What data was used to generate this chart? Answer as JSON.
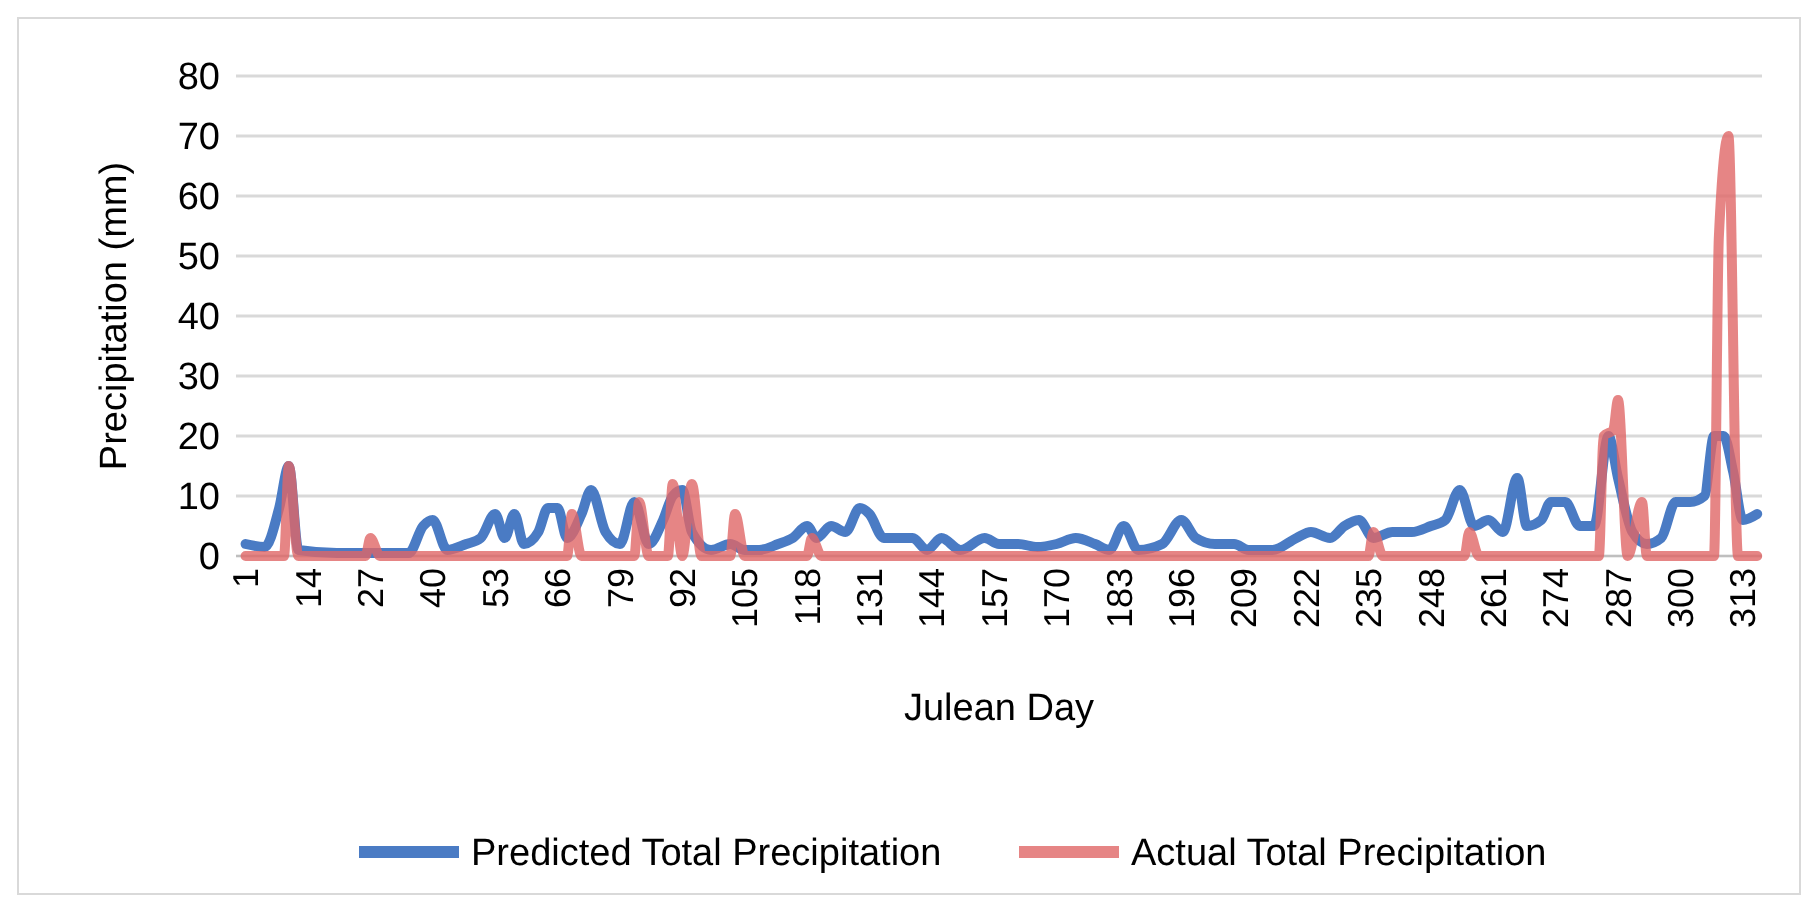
{
  "chart_data": {
    "type": "line",
    "xlabel": "Julean Day",
    "ylabel": "Precipitation (mm)",
    "xlim": [
      -1,
      317
    ],
    "xticks": [
      1,
      14,
      27,
      40,
      53,
      66,
      79,
      92,
      105,
      118,
      131,
      144,
      157,
      170,
      183,
      196,
      209,
      222,
      235,
      248,
      261,
      274,
      287,
      300,
      313
    ],
    "ylim": [
      0,
      80
    ],
    "yticks": [
      0,
      10,
      20,
      30,
      40,
      50,
      60,
      70,
      80
    ],
    "grid": "y",
    "legend": "bottom",
    "marker": "none",
    "line_style": "solid",
    "series": [
      {
        "name": "Predicted Total Precipitation",
        "color": "#4a7bc4",
        "x": [
          1,
          5,
          8,
          10,
          12,
          20,
          30,
          35,
          38,
          40,
          43,
          47,
          50,
          53,
          55,
          57,
          59,
          62,
          64,
          66,
          68,
          71,
          73,
          76,
          79,
          82,
          85,
          88,
          90,
          92,
          94,
          98,
          102,
          105,
          108,
          112,
          115,
          118,
          120,
          123,
          126,
          129,
          131,
          134,
          137,
          140,
          143,
          146,
          150,
          155,
          158,
          162,
          166,
          170,
          174,
          178,
          181,
          184,
          187,
          192,
          196,
          199,
          203,
          207,
          210,
          215,
          220,
          223,
          227,
          230,
          233,
          236,
          240,
          244,
          248,
          251,
          254,
          257,
          260,
          263,
          266,
          268,
          271,
          273,
          276,
          279,
          282,
          285,
          287,
          290,
          293,
          296,
          299,
          302,
          305,
          307,
          309,
          311,
          313,
          316
        ],
        "values": [
          2,
          1.5,
          8,
          15,
          1,
          0.5,
          0.5,
          0.5,
          5,
          6,
          1,
          2,
          3,
          7,
          3,
          7,
          2,
          4,
          8,
          8,
          3,
          7,
          11,
          4,
          2,
          9,
          2,
          6,
          10,
          11,
          4,
          1,
          2,
          1,
          1,
          2,
          3,
          5,
          3,
          5,
          4,
          8,
          7,
          3,
          3,
          3,
          1,
          3,
          1,
          3,
          2,
          2,
          1.5,
          2,
          3,
          2,
          1,
          5,
          1,
          2,
          6,
          3,
          2,
          2,
          1,
          1,
          3,
          4,
          3,
          5,
          6,
          3,
          4,
          4,
          5,
          6,
          11,
          5,
          6,
          4,
          13,
          5,
          6,
          9,
          9,
          5,
          5,
          20,
          13,
          4,
          2,
          3,
          9,
          9,
          10,
          20,
          20,
          14,
          6,
          7
        ]
      },
      {
        "name": "Actual Total Precipitation",
        "color": "#e06666",
        "x": [
          1,
          9,
          10,
          12,
          26,
          27,
          29,
          68,
          69,
          71,
          82,
          83,
          85,
          89,
          90,
          92,
          94,
          96,
          102,
          103,
          105,
          118,
          119,
          121,
          235,
          236,
          238,
          255,
          256,
          258,
          283,
          284,
          286,
          287,
          289,
          292,
          293,
          307,
          308,
          310,
          312,
          316
        ],
        "values": [
          0,
          0,
          15,
          0,
          0,
          3,
          0,
          0,
          7,
          0,
          0,
          9,
          0,
          0,
          12,
          0,
          12,
          0,
          0,
          7,
          0,
          0,
          3,
          0,
          0,
          4,
          0,
          0,
          4,
          0,
          0,
          20,
          21,
          26,
          0,
          9,
          0,
          0,
          53,
          70,
          0,
          0
        ]
      }
    ]
  }
}
